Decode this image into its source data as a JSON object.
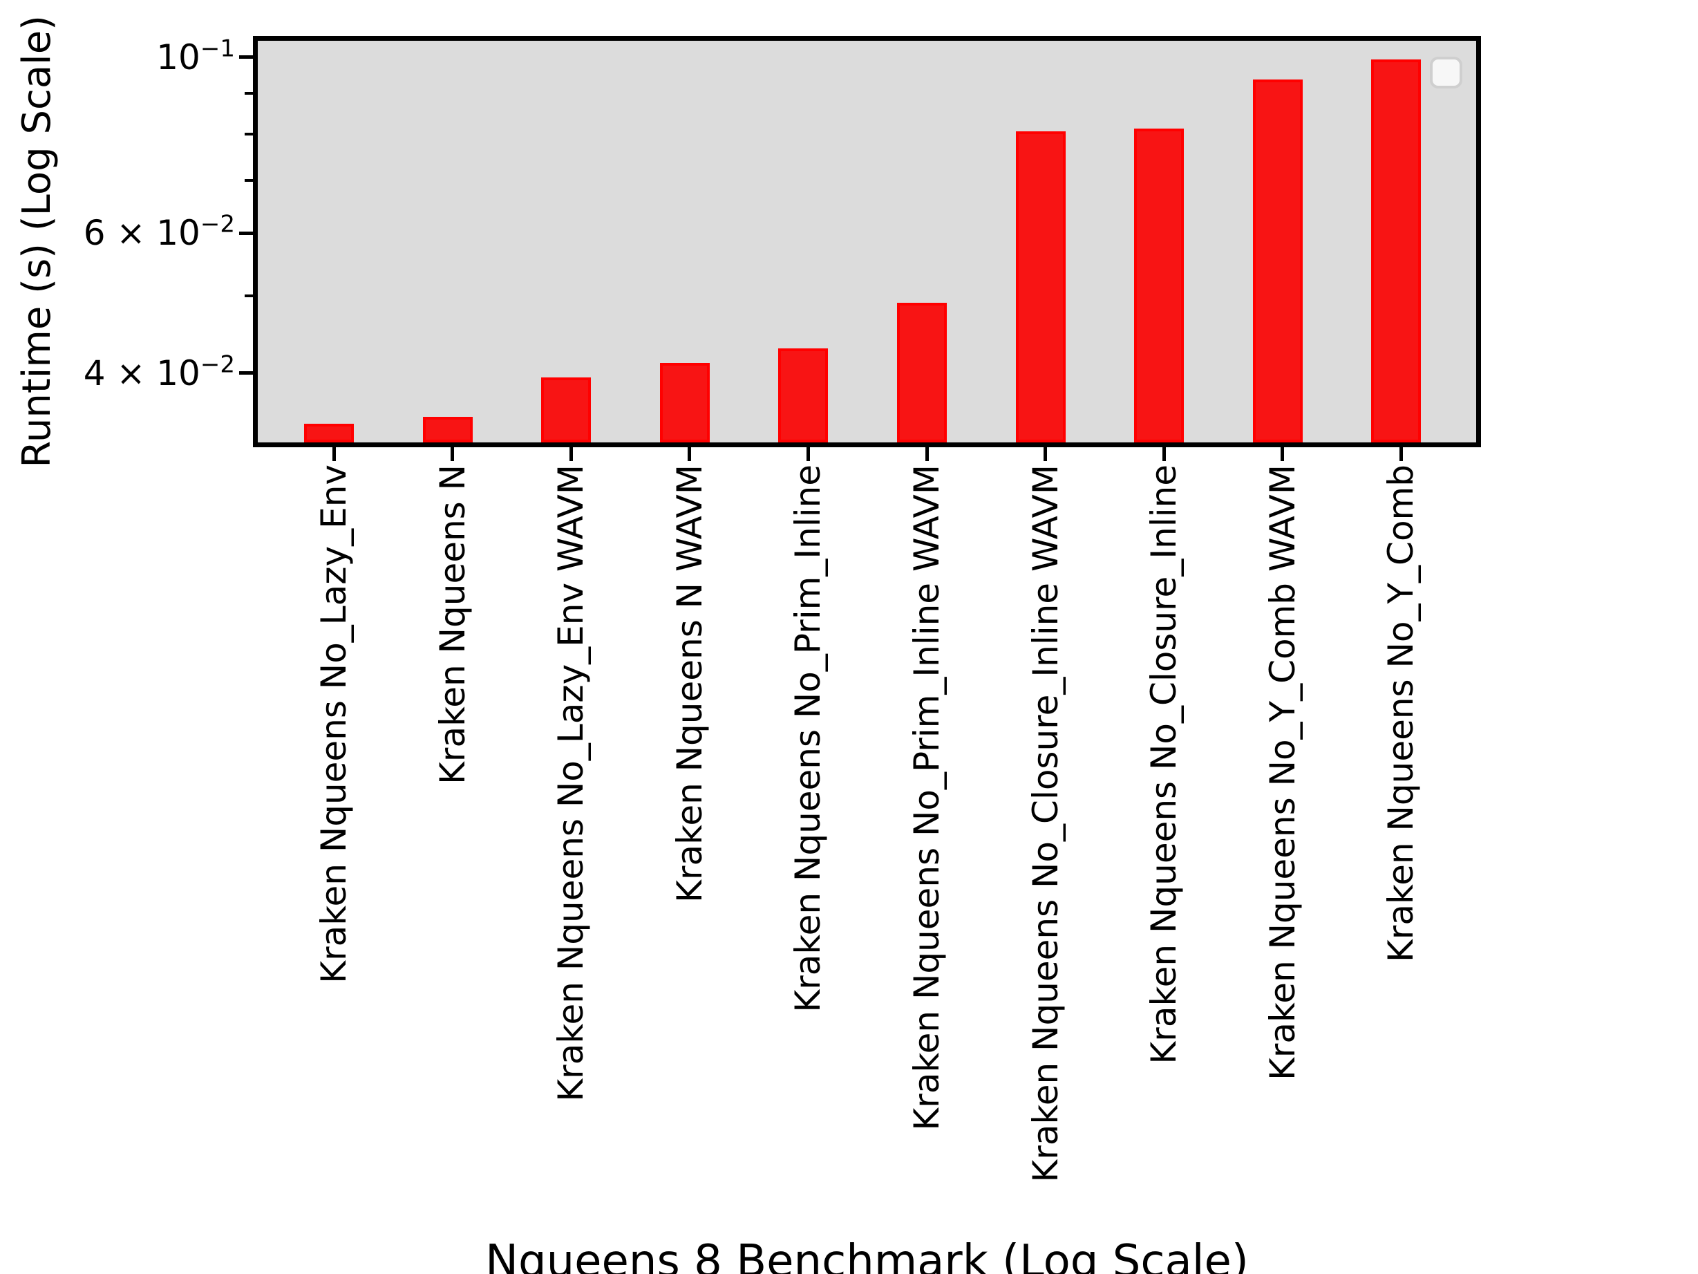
{
  "chart_data": {
    "type": "bar",
    "title": "",
    "xlabel": "Nqueens 8 Benchmark (Log Scale)",
    "ylabel": "Runtime (s) (Log Scale)",
    "yscale": "log",
    "ylim": [
      0.0327,
      0.1049
    ],
    "grid": false,
    "legend_position": "upper right (empty box)",
    "plot_bg_color": "#dcdcdc",
    "figure_bg_color": "#ffffff",
    "bar_fill_color": "#f81414",
    "bar_edge_color": "#ff0000",
    "categories": [
      "Kraken Nqueens No_Lazy_Env",
      "Kraken Nqueens N",
      "Kraken Nqueens No_Lazy_Env WAVM",
      "Kraken Nqueens N WAVM",
      "Kraken Nqueens No_Prim_Inline",
      "Kraken Nqueens No_Prim_Inline WAVM",
      "Kraken Nqueens No_Closure_Inline WAVM",
      "Kraken Nqueens No_Closure_Inline",
      "Kraken Nqueens No_Y_Comb WAVM",
      "Kraken Nqueens No_Y_Comb"
    ],
    "values": [
      0.0345,
      0.0352,
      0.0395,
      0.0412,
      0.043,
      0.049,
      0.0807,
      0.0813,
      0.0937,
      0.0993
    ],
    "y_major_ticks": [
      {
        "value": 0.1,
        "prefix": "",
        "base": "10",
        "exponent": "−1"
      },
      {
        "value": 0.06,
        "prefix": "6 × ",
        "base": "10",
        "exponent": "−2"
      },
      {
        "value": 0.04,
        "prefix": "4 × ",
        "base": "10",
        "exponent": "−2"
      }
    ],
    "y_minor_ticks": [
      0.09,
      0.08,
      0.07,
      0.05
    ]
  }
}
